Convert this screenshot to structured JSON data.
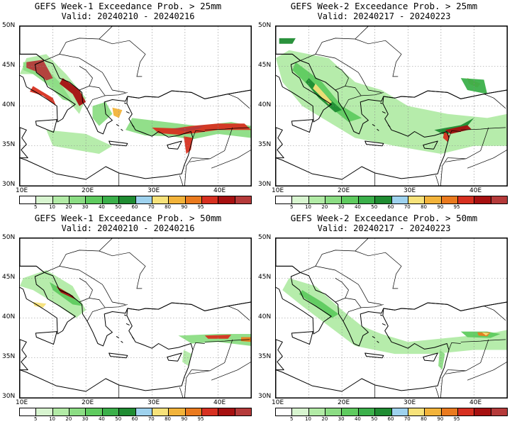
{
  "panels": [
    {
      "title": "GEFS Week-1 Exceedance Prob. > 25mm",
      "valid": "Valid: 20240210 - 20240216"
    },
    {
      "title": "GEFS Week-2 Exceedance Prob. > 25mm",
      "valid": "Valid: 20240217 - 20240223"
    },
    {
      "title": "GEFS Week-1 Exceedance Prob. > 50mm",
      "valid": "Valid: 20240210 - 20240216"
    },
    {
      "title": "GEFS Week-2 Exceedance Prob. > 50mm",
      "valid": "Valid: 20240217 - 20240223"
    }
  ],
  "axes": {
    "lat_labels": [
      "50N",
      "45N",
      "40N",
      "35N",
      "30N"
    ],
    "lon_labels": [
      "10E",
      "20E",
      "30E",
      "40E"
    ]
  },
  "colorbar": {
    "ticks": [
      "5",
      "10",
      "20",
      "30",
      "40",
      "50",
      "60",
      "70",
      "80",
      "90",
      "95"
    ],
    "colors": [
      "#ffffff",
      "#d8f5d0",
      "#b2eba6",
      "#8cdd84",
      "#5fcb5f",
      "#3bb04a",
      "#1f8c32",
      "#9ed2ee",
      "#f7e27a",
      "#f2b33a",
      "#ea7a1e",
      "#d73020",
      "#a61010",
      "#b53a3a"
    ]
  }
}
